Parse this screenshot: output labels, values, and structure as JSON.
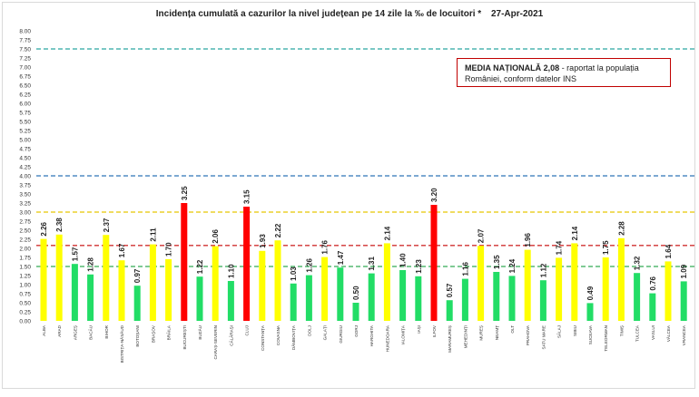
{
  "title": "Incidența cumulată a cazurilor la nivel județean pe 14 zile la ‰ de locuitori *",
  "date": "27-Apr-2021",
  "note": {
    "bold": "MEDIA NAȚIONALĂ  2,08",
    "rest": " - raportat la populația României, conform datelor INS"
  },
  "colors": {
    "yellow": "#ffff00",
    "green": "#22dd66",
    "red": "#ff0000",
    "line_blue": "#2e75b6",
    "line_teal": "#2aa7a0",
    "line_yellow": "#e6c800",
    "line_red": "#d03030",
    "line_green": "#33aa55"
  },
  "chart_data": {
    "type": "bar",
    "title": "Incidența cumulată a cazurilor la nivel județean pe 14 zile la ‰ de locuitori *",
    "ylim": [
      0,
      8
    ],
    "ytick_step": 0.25,
    "yticks": [
      "0.00",
      "0.25",
      "0.50",
      "0.75",
      "1.00",
      "1.25",
      "1.50",
      "1.75",
      "2.00",
      "2.25",
      "2.50",
      "2.75",
      "3.00",
      "3.25",
      "3.50",
      "3.75",
      "4.00",
      "4.25",
      "4.50",
      "4.75",
      "5.00",
      "5.25",
      "5.50",
      "5.75",
      "6.00",
      "6.25",
      "6.50",
      "6.75",
      "7.00",
      "7.25",
      "7.50",
      "7.75",
      "8.00"
    ],
    "categories": [
      "ALBA",
      "ARAD",
      "ARGEȘ",
      "BACĂU",
      "BIHOR",
      "BISTRIȚA-NĂSĂUD",
      "BOTOȘANI",
      "BRAȘOV",
      "BRĂILA",
      "BUCUREȘTI",
      "BUZĂU",
      "CARAȘ-SEVERIN",
      "CĂLĂRAȘI",
      "CLUJ",
      "CONSTANȚA",
      "COVASNA",
      "DÂMBOVIȚA",
      "DOLJ",
      "GALAȚI",
      "GIURGIU",
      "GORJ",
      "HARGHITA",
      "HUNEDOARA",
      "IALOMIȚA",
      "IAȘI",
      "ILFOV",
      "MARAMUREȘ",
      "MEHEDINȚI",
      "MUREȘ",
      "NEAMȚ",
      "OLT",
      "PRAHOVA",
      "SATU MARE",
      "SĂLAJ",
      "SIBIU",
      "SUCEAVA",
      "TELEORMAN",
      "TIMIȘ",
      "TULCEA",
      "VASLUI",
      "VÂLCEA",
      "VRANCEA"
    ],
    "values": [
      2.26,
      2.38,
      1.57,
      1.28,
      2.37,
      1.67,
      0.97,
      2.11,
      1.7,
      3.25,
      1.22,
      2.06,
      1.1,
      3.15,
      1.93,
      2.22,
      1.03,
      1.26,
      1.76,
      1.47,
      0.5,
      1.31,
      2.14,
      1.4,
      1.23,
      3.2,
      0.57,
      1.16,
      2.07,
      1.35,
      1.24,
      1.96,
      1.12,
      1.74,
      2.14,
      0.49,
      1.75,
      2.28,
      1.32,
      0.76,
      1.64,
      1.09
    ],
    "labels": [
      "2.26",
      "2.38",
      "1.57",
      "1.28",
      "2.37",
      "1.67",
      "0.97",
      "2.11",
      "1.70",
      "3.25",
      "1.22",
      "2.06",
      "1.10",
      "3.15",
      "1.93",
      "2.22",
      "1.03",
      "1.26",
      "1.76",
      "1.47",
      "0.50",
      "1.31",
      "2.14",
      "1.40",
      "1.23",
      "3.20",
      "0.57",
      "1.16",
      "2.07",
      "1.35",
      "1.24",
      "1.96",
      "1.12",
      "1.74",
      "2.14",
      "0.49",
      "1.75",
      "2.28",
      "1.32",
      "0.76",
      "1.64",
      "1.09"
    ],
    "bar_colors": [
      "yellow",
      "yellow",
      "green",
      "green",
      "yellow",
      "yellow",
      "green",
      "yellow",
      "yellow",
      "red",
      "green",
      "yellow",
      "green",
      "red",
      "yellow",
      "yellow",
      "green",
      "green",
      "yellow",
      "green",
      "green",
      "green",
      "yellow",
      "green",
      "green",
      "red",
      "green",
      "green",
      "yellow",
      "green",
      "green",
      "yellow",
      "green",
      "yellow",
      "yellow",
      "green",
      "yellow",
      "yellow",
      "green",
      "green",
      "yellow",
      "green"
    ],
    "reference_lines": [
      {
        "value": 7.5,
        "color": "line_teal"
      },
      {
        "value": 4.0,
        "color": "line_blue"
      },
      {
        "value": 3.0,
        "color": "line_yellow"
      },
      {
        "value": 2.08,
        "color": "line_red"
      },
      {
        "value": 1.5,
        "color": "line_green"
      }
    ],
    "grid": false
  }
}
